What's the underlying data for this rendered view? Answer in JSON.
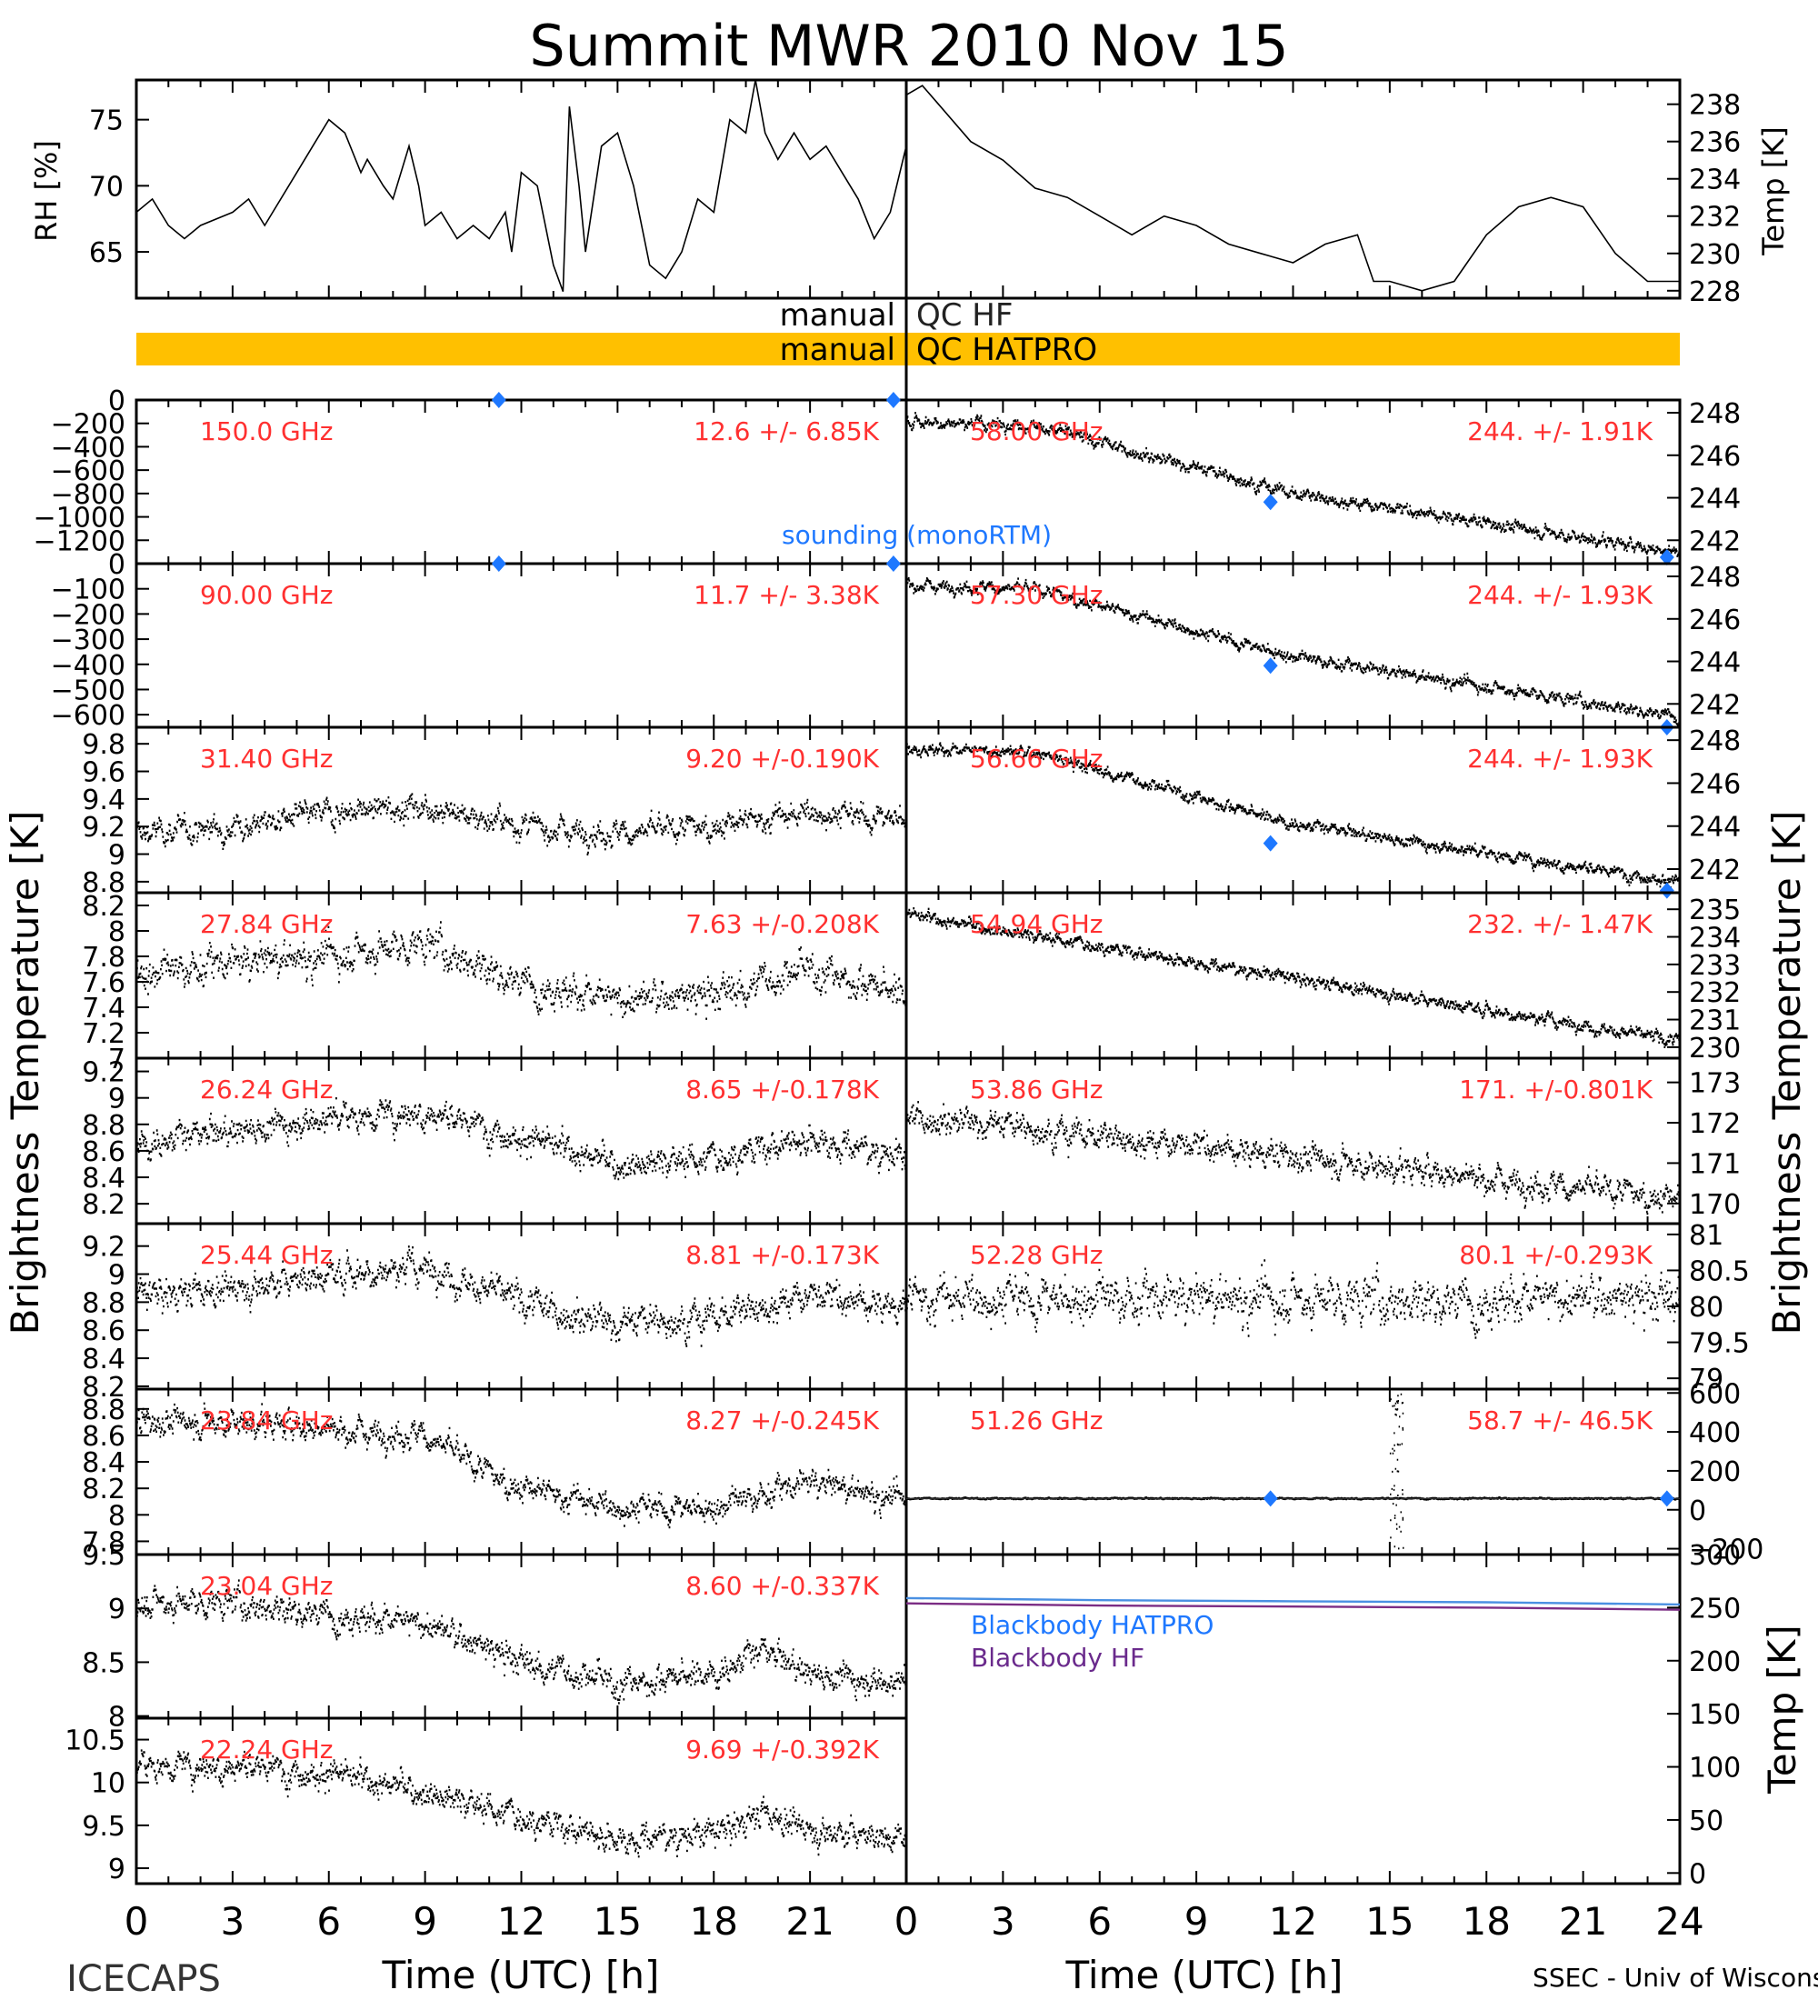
{
  "title": "Summit MWR 2010 Nov 15",
  "footer_left": "ICECAPS",
  "footer_right": "SSEC - Univ of Wisconsin",
  "xlabel": "Time (UTC) [h]",
  "colors": {
    "data": "#000000",
    "label": "#ff3030",
    "sounding": "#1e78ff",
    "qc_bar": "#ffc000",
    "bb_hatpro": "#4a90e2",
    "bb_hf": "#7b2c84"
  },
  "qc": {
    "prefix": "manual",
    "hf_label": "QC HF",
    "hatpro_label": "QC HATPRO",
    "hatpro_flag_hours": [
      [
        0,
        24
      ]
    ]
  },
  "chart_data": [
    {
      "id": "met",
      "type": "line",
      "left_ylabel": "RH [%]",
      "right_ylabel": "Temp [K]",
      "left_ylim": [
        61.5,
        78
      ],
      "left_yticks": [
        65,
        70,
        75
      ],
      "right_ylim": [
        227.6,
        239.3
      ],
      "right_yticks": [
        228,
        230,
        232,
        234,
        236,
        238
      ],
      "rh_series": {
        "x": [
          0,
          0.5,
          1,
          1.5,
          2,
          3,
          3.5,
          4,
          5,
          5.5,
          6,
          6.5,
          7,
          7.2,
          7.7,
          8,
          8.5,
          8.8,
          9,
          9.5,
          10,
          10.5,
          11,
          11.5,
          11.7,
          12,
          12.5,
          13,
          13.3,
          13.5,
          13.8,
          14,
          14.5,
          15,
          15.5,
          16,
          16.5,
          17,
          17.5,
          18,
          18.5,
          19,
          19.3,
          19.6,
          20,
          20.5,
          21,
          21.5,
          22,
          22.5,
          23,
          23.5,
          24
        ],
        "y": [
          68,
          69,
          67,
          66,
          67,
          68,
          69,
          67,
          71,
          73,
          75,
          74,
          71,
          72,
          70,
          69,
          73,
          70,
          67,
          68,
          66,
          67,
          66,
          68,
          65,
          71,
          70,
          64,
          62,
          76,
          70,
          65,
          73,
          74,
          70,
          64,
          63,
          65,
          69,
          68,
          75,
          74,
          78,
          74,
          72,
          74,
          72,
          73,
          71,
          69,
          66,
          68,
          73
        ]
      },
      "temp_series": {
        "x": [
          0,
          0.5,
          1,
          2,
          3,
          4,
          5,
          6,
          7,
          8,
          9,
          10,
          11,
          12,
          13,
          14,
          14.5,
          15,
          16,
          17,
          18,
          19,
          20,
          21,
          22,
          23,
          24
        ],
        "y": [
          238.5,
          239,
          238,
          236,
          235,
          233.5,
          233,
          232,
          231,
          232,
          231.5,
          230.5,
          230,
          229.5,
          230.5,
          231,
          228.5,
          228.5,
          228,
          228.5,
          231,
          232.5,
          233,
          232.5,
          230,
          228.5,
          228.5
        ]
      }
    },
    {
      "id": "left_1",
      "type": "scatter",
      "label": "150.0 GHz",
      "stats": "12.6 +/-  6.85K",
      "ylim": [
        -1400,
        0
      ],
      "yticks": [
        0,
        -200,
        -400,
        -600,
        -800,
        -1000,
        -1200
      ],
      "points": [],
      "sounding_x": [
        11.3,
        23.6
      ],
      "sounding_y": [
        0,
        0
      ]
    },
    {
      "id": "left_2",
      "type": "scatter",
      "label": "90.00 GHz",
      "stats": "11.7 +/-  3.38K",
      "ylim": [
        -650,
        0
      ],
      "yticks": [
        0,
        -100,
        -200,
        -300,
        -400,
        -500,
        -600
      ],
      "points": [],
      "sounding_x": [
        11.3,
        23.6
      ],
      "sounding_y": [
        0,
        0
      ]
    },
    {
      "id": "left_3",
      "type": "scatter",
      "label": "31.40 GHz",
      "stats": "9.20 +/-0.190K",
      "ylim": [
        8.72,
        9.92
      ],
      "yticks": [
        8.8,
        9.0,
        9.2,
        9.4,
        9.6,
        9.8
      ],
      "trend": {
        "x": [
          0,
          3,
          6,
          9,
          12,
          15,
          18,
          21,
          24
        ],
        "y": [
          9.15,
          9.2,
          9.3,
          9.35,
          9.2,
          9.15,
          9.2,
          9.3,
          9.25
        ]
      },
      "noise": 0.08
    },
    {
      "id": "left_4",
      "type": "scatter",
      "label": "27.84 GHz",
      "stats": "7.63 +/-0.208K",
      "ylim": [
        7.0,
        8.3
      ],
      "yticks": [
        7.0,
        7.2,
        7.4,
        7.6,
        7.8,
        8.0,
        8.2
      ],
      "trend": {
        "x": [
          0,
          3,
          6,
          9,
          12,
          15,
          18,
          21,
          24
        ],
        "y": [
          7.65,
          7.75,
          7.8,
          7.9,
          7.6,
          7.45,
          7.5,
          7.7,
          7.5
        ]
      },
      "noise": 0.12
    },
    {
      "id": "left_5",
      "type": "scatter",
      "label": "26.24 GHz",
      "stats": "8.65 +/-0.178K",
      "ylim": [
        8.05,
        9.3
      ],
      "yticks": [
        8.2,
        8.4,
        8.6,
        8.8,
        9.0,
        9.2
      ],
      "trend": {
        "x": [
          0,
          3,
          6,
          9,
          12,
          15,
          18,
          21,
          24
        ],
        "y": [
          8.65,
          8.75,
          8.85,
          8.9,
          8.7,
          8.5,
          8.55,
          8.7,
          8.55
        ]
      },
      "noise": 0.1
    },
    {
      "id": "left_6",
      "type": "scatter",
      "label": "25.44 GHz",
      "stats": "8.81 +/-0.173K",
      "ylim": [
        8.18,
        9.36
      ],
      "yticks": [
        8.2,
        8.4,
        8.6,
        8.8,
        9.0,
        9.2
      ],
      "trend": {
        "x": [
          0,
          3,
          6,
          9,
          12,
          15,
          18,
          21,
          24
        ],
        "y": [
          8.85,
          8.9,
          9.0,
          9.05,
          8.8,
          8.65,
          8.7,
          8.85,
          8.75
        ]
      },
      "noise": 0.1
    },
    {
      "id": "left_7",
      "type": "scatter",
      "label": "23.84 GHz",
      "stats": "8.27 +/-0.245K",
      "ylim": [
        7.7,
        8.95
      ],
      "yticks": [
        7.8,
        8.0,
        8.2,
        8.4,
        8.6,
        8.8
      ],
      "trend": {
        "x": [
          0,
          3,
          6,
          9,
          11,
          12,
          15,
          18,
          21,
          24
        ],
        "y": [
          8.7,
          8.7,
          8.65,
          8.6,
          8.3,
          8.2,
          8.05,
          8.05,
          8.25,
          8.1
        ]
      },
      "noise": 0.09
    },
    {
      "id": "left_8",
      "type": "scatter",
      "label": "23.04 GHz",
      "stats": "8.60 +/-0.337K",
      "ylim": [
        7.98,
        9.5
      ],
      "yticks": [
        8.0,
        8.5,
        9.0,
        9.5
      ],
      "trend": {
        "x": [
          0,
          3,
          6,
          9,
          12,
          15,
          18,
          19.5,
          21,
          24
        ],
        "y": [
          9.05,
          9.05,
          8.95,
          8.85,
          8.5,
          8.3,
          8.4,
          8.6,
          8.4,
          8.3
        ]
      },
      "noise": 0.12
    },
    {
      "id": "left_9",
      "type": "scatter",
      "label": "22.24 GHz",
      "stats": "9.69 +/-0.392K",
      "ylim": [
        8.82,
        10.75
      ],
      "yticks": [
        9.0,
        9.5,
        10.0,
        10.5
      ],
      "trend": {
        "x": [
          0,
          3,
          6,
          9,
          12,
          15,
          18,
          19.5,
          21,
          24
        ],
        "y": [
          10.2,
          10.2,
          10.1,
          9.9,
          9.6,
          9.35,
          9.4,
          9.65,
          9.45,
          9.35
        ]
      },
      "noise": 0.15
    },
    {
      "id": "right_1",
      "type": "scatter",
      "label": "58.00 GHz",
      "stats": "244. +/- 1.91K",
      "ylim": [
        240.9,
        248.6
      ],
      "yticks": [
        242,
        244,
        246,
        248
      ],
      "trend": {
        "x": [
          0,
          4,
          12,
          24
        ],
        "y": [
          247.6,
          247.4,
          244.2,
          241.4
        ]
      },
      "noise": 0.25,
      "sounding_x": [
        11.3,
        23.6
      ],
      "sounding_y": [
        243.8,
        241.2
      ]
    },
    {
      "id": "right_2",
      "type": "scatter",
      "label": "57.30 GHz",
      "stats": "244. +/- 1.93K",
      "ylim": [
        240.9,
        248.6
      ],
      "yticks": [
        242,
        244,
        246,
        248
      ],
      "trend": {
        "x": [
          0,
          4,
          12,
          24
        ],
        "y": [
          247.6,
          247.4,
          244.2,
          241.4
        ]
      },
      "noise": 0.25,
      "sounding_x": [
        11.3,
        23.6
      ],
      "sounding_y": [
        243.8,
        240.9
      ]
    },
    {
      "id": "right_3",
      "type": "scatter",
      "label": "56.66 GHz",
      "stats": "244. +/- 1.93K",
      "ylim": [
        240.9,
        248.6
      ],
      "yticks": [
        242,
        244,
        246,
        248
      ],
      "trend": {
        "x": [
          0,
          4,
          12,
          24
        ],
        "y": [
          247.6,
          247.4,
          244.1,
          241.4
        ]
      },
      "noise": 0.25,
      "sounding_x": [
        11.3,
        23.6
      ],
      "sounding_y": [
        243.2,
        241.0
      ]
    },
    {
      "id": "right_4",
      "type": "scatter",
      "label": "54.94 GHz",
      "stats": "232. +/- 1.47K",
      "ylim": [
        229.6,
        235.6
      ],
      "yticks": [
        230,
        231,
        232,
        233,
        234,
        235
      ],
      "trend": {
        "x": [
          0,
          24
        ],
        "y": [
          234.8,
          230.2
        ]
      },
      "noise": 0.2
    },
    {
      "id": "right_5",
      "type": "scatter",
      "label": "53.86 GHz",
      "stats": "171. +/-0.801K",
      "ylim": [
        169.5,
        173.6
      ],
      "yticks": [
        170,
        171,
        172,
        173
      ],
      "trend": {
        "x": [
          0,
          24
        ],
        "y": [
          172.2,
          170.1
        ]
      },
      "noise": 0.3
    },
    {
      "id": "right_6",
      "type": "scatter",
      "label": "52.28 GHz",
      "stats": "80.1 +/-0.293K",
      "ylim": [
        78.85,
        81.15
      ],
      "yticks": [
        79.0,
        79.5,
        80.0,
        80.5,
        81.0
      ],
      "trend": {
        "x": [
          0,
          24
        ],
        "y": [
          80.1,
          80.1
        ]
      },
      "noise": 0.28
    },
    {
      "id": "right_7",
      "type": "scatter",
      "label": "51.26 GHz",
      "stats": "58.7 +/- 46.5K",
      "ylim": [
        -230,
        620
      ],
      "yticks": [
        -200,
        0,
        200,
        400,
        600
      ],
      "trend": {
        "x": [
          0,
          24
        ],
        "y": [
          58,
          58
        ]
      },
      "noise": 3,
      "sounding_x": [
        11.3,
        23.6
      ],
      "sounding_y": [
        58,
        58
      ]
    },
    {
      "id": "blackbody",
      "type": "line",
      "right_ylabel": "Temp [K]",
      "ylim": [
        -10,
        300
      ],
      "yticks": [
        0,
        50,
        100,
        150,
        200,
        250,
        300
      ],
      "series": [
        {
          "name": "Blackbody HATPRO",
          "x": [
            0,
            6,
            12,
            18,
            24
          ],
          "y": [
            259,
            257,
            256,
            255,
            253
          ]
        },
        {
          "name": "Blackbody HF",
          "x": [
            0,
            6,
            12,
            18,
            24
          ],
          "y": [
            254,
            252,
            251,
            250,
            248
          ]
        }
      ]
    }
  ],
  "y_axis_title": "Brightness Temperature [K]",
  "sounding_label": "sounding (monoRTM)",
  "x_ticks": [
    0,
    3,
    6,
    9,
    12,
    15,
    18,
    21,
    24
  ],
  "x_tick_labels_left": [
    "0",
    "3",
    "6",
    "9",
    "12",
    "15",
    "18",
    "21"
  ],
  "x_tick_labels_right": [
    "0",
    "3",
    "6",
    "9",
    "12",
    "15",
    "18",
    "21",
    "24"
  ],
  "xlim": [
    0,
    24
  ]
}
